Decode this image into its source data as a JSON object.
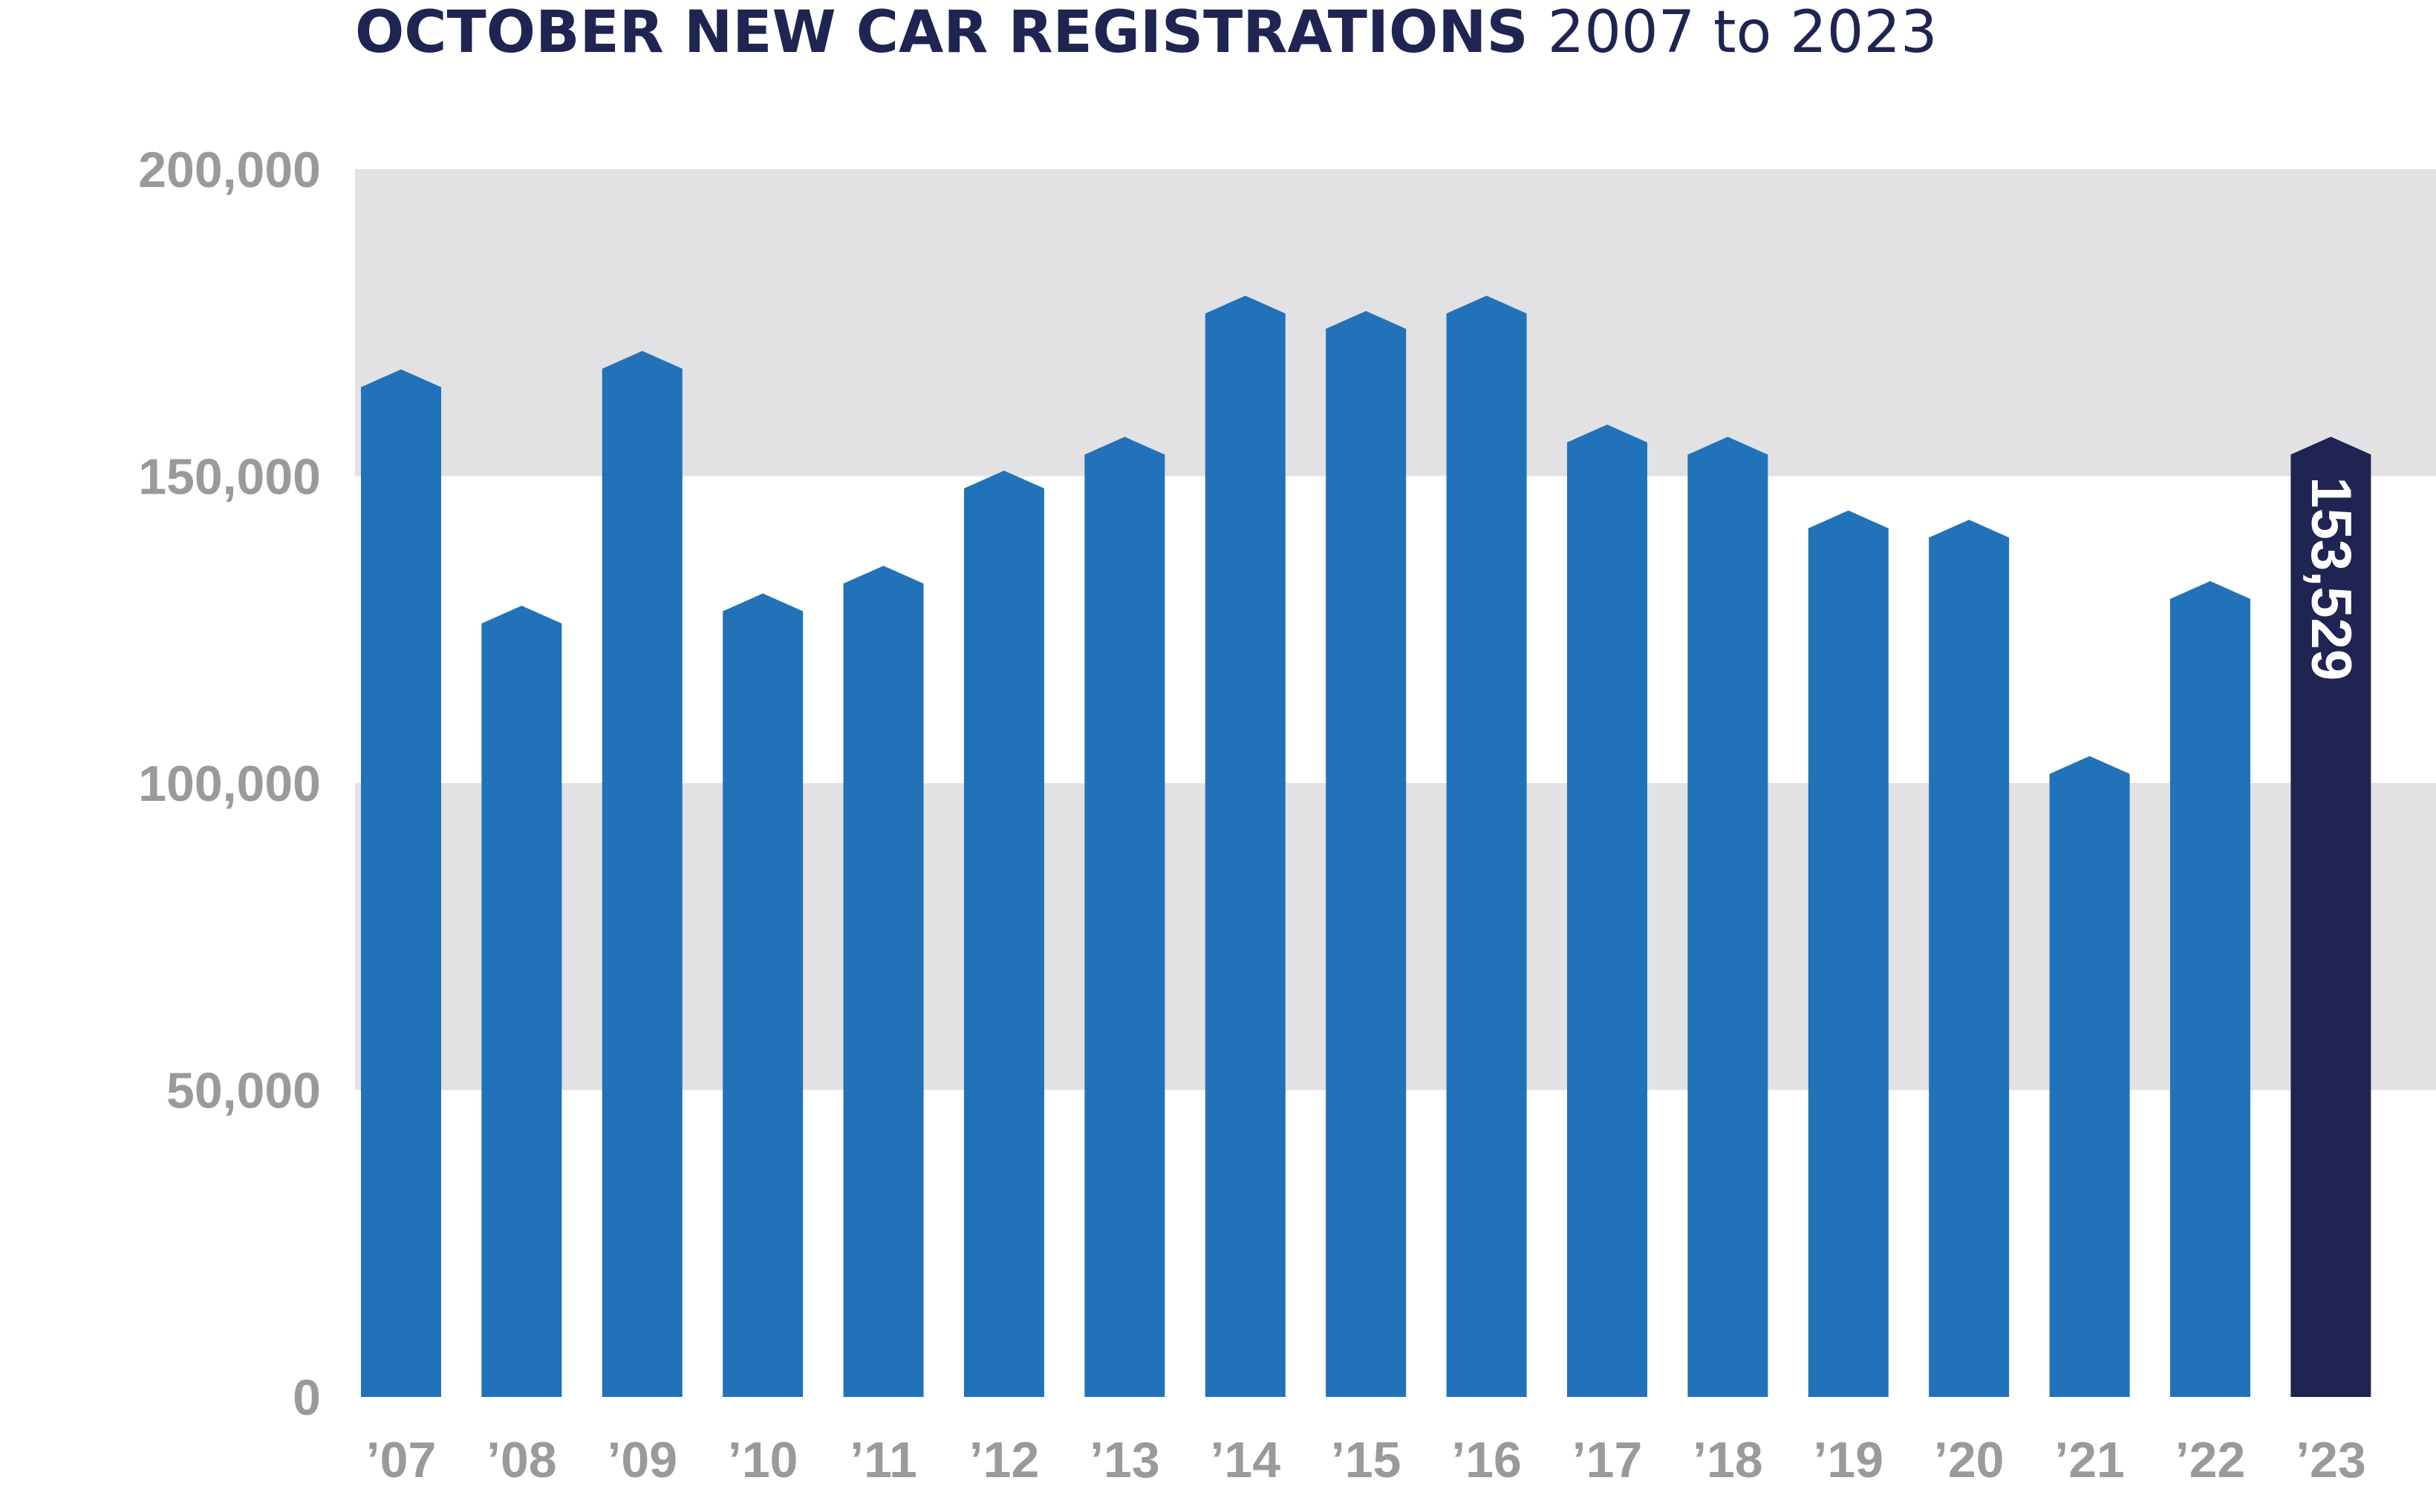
{
  "chart_data": {
    "type": "bar",
    "title": "OCTOBER NEW CAR REGISTRATIONS",
    "subtitle": "2007 to 2023",
    "categories": [
      "’07",
      "’08",
      "’09",
      "’10",
      "’11",
      "’12",
      "’13",
      "’14",
      "’15",
      "’16",
      "’17",
      "’18",
      "’19",
      "’20",
      "’21",
      "’22",
      "’23"
    ],
    "values": [
      164500,
      126000,
      167500,
      128000,
      132500,
      148000,
      153500,
      176500,
      174000,
      176500,
      155500,
      153500,
      141500,
      140000,
      101500,
      130000,
      153529
    ],
    "ylim": [
      0,
      200000
    ],
    "yticks": [
      "0",
      "50,000",
      "100,000",
      "150,000",
      "200,000"
    ],
    "ytick_values": [
      0,
      50000,
      100000,
      150000,
      200000
    ],
    "highlight_index": 16,
    "highlight_label": "153,529",
    "grid_bands": "alternating grey bands",
    "colors": {
      "bar": "#2272b9",
      "highlight": "#1f2452",
      "band": "#e2e1e3",
      "title": "#1f2452",
      "tick": "#9a9a9c"
    }
  }
}
